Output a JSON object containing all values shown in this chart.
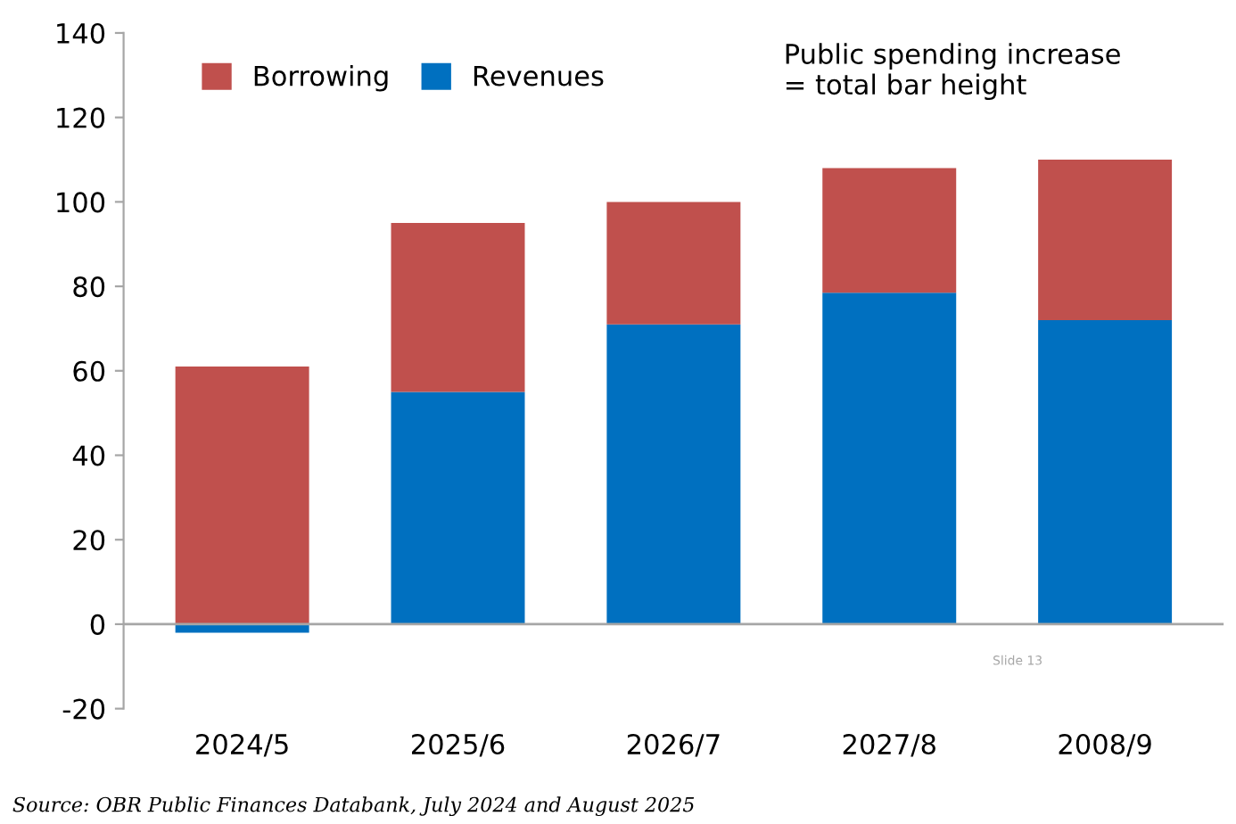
{
  "chart_data": {
    "type": "bar",
    "stacked": true,
    "categories": [
      "2024/5",
      "2025/6",
      "2026/7",
      "2027/8",
      "2008/9"
    ],
    "series": [
      {
        "name": "Revenues",
        "color": "#0070c0",
        "values": [
          -2,
          55,
          71,
          78.5,
          72
        ]
      },
      {
        "name": "Borrowing",
        "color": "#c0504d",
        "values": [
          61,
          40,
          29,
          29.5,
          38
        ]
      }
    ],
    "ylim": [
      -20,
      140
    ],
    "yticks": [
      -20,
      0,
      20,
      40,
      60,
      80,
      100,
      120,
      140
    ],
    "grid": false,
    "legend": "top left",
    "ref_lines": [
      {
        "axis": "y",
        "value": 0,
        "color": "#a6a6a6"
      }
    ],
    "annotations": [
      "Public spending increase\n= total bar height",
      "Slide 13",
      "Source: OBR Public Finances Databank, July 2024 and August 2025"
    ]
  }
}
